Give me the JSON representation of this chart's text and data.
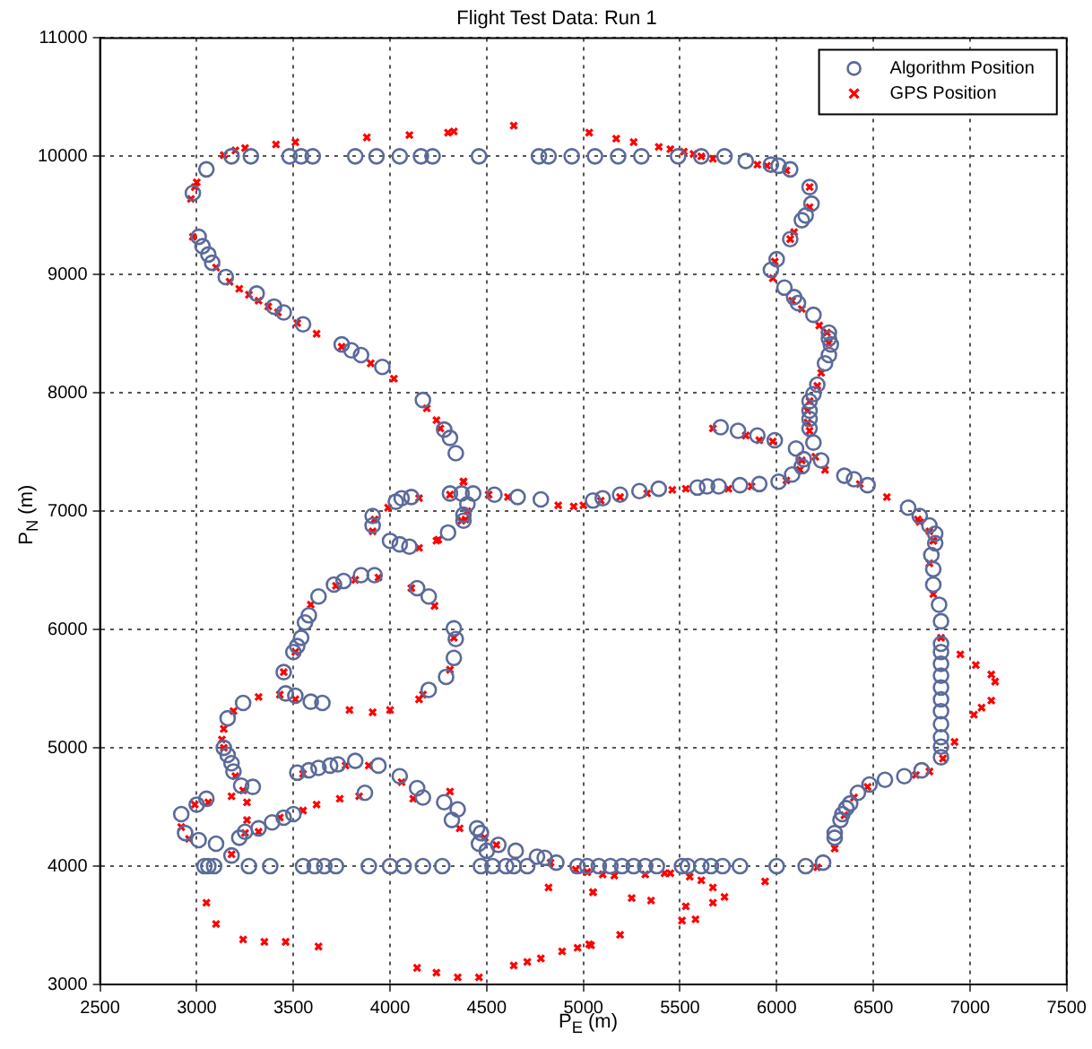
{
  "chart_data": {
    "type": "scatter",
    "title": "Flight Test Data: Run 1",
    "xlabel": "P$_{E}$ (m)",
    "ylabel": "P$_{N}$ (m)",
    "xlim": [
      2500,
      7500
    ],
    "xticks": [
      2500,
      3000,
      3500,
      4000,
      4500,
      5000,
      5500,
      6000,
      6500,
      7000,
      7500
    ],
    "ylim": [
      3000,
      11000
    ],
    "yticks": [
      3000,
      4000,
      5000,
      6000,
      7000,
      8000,
      9000,
      10000,
      11000
    ],
    "grid": true,
    "legend": "top right",
    "series": [
      {
        "name": "Algorithm Position",
        "color": "#5a6a9a",
        "marker": "circle",
        "x": [
          3180,
          3280,
          3480,
          3540,
          3600,
          3820,
          3930,
          4050,
          4160,
          4220,
          4460,
          4770,
          4820,
          4940,
          5060,
          5180,
          5300,
          5490,
          5610,
          5730,
          5840,
          5970,
          6010,
          6070,
          6170,
          6180,
          6150,
          6130,
          6070,
          6000,
          5970,
          6040,
          6090,
          6110,
          6190,
          6270,
          6270,
          6280,
          6270,
          6250,
          6210,
          6190,
          6170,
          6170,
          6170,
          6170,
          6190,
          6230,
          6140,
          6130,
          6080,
          6010,
          5910,
          5810,
          5700,
          5640,
          5590,
          5390,
          5290,
          5190,
          5100,
          5050,
          5710,
          5800,
          5900,
          5990,
          6100,
          6350,
          6400,
          6470,
          6680,
          6740,
          6790,
          6820,
          6820,
          6800,
          6810,
          6810,
          6840,
          6850,
          6850,
          6850,
          6850,
          6850,
          6850,
          6850,
          6850,
          6850,
          6850,
          6850,
          6850,
          6750,
          6660,
          6560,
          6480,
          6420,
          6380,
          6360,
          6340,
          6330,
          6300,
          6300,
          6240,
          6150,
          6000,
          5810,
          5720,
          5660,
          5610,
          5540,
          5510,
          5380,
          5320,
          5260,
          5200,
          5140,
          5080,
          5020,
          4970,
          4860,
          4800,
          4760,
          4650,
          4560,
          4500,
          4460,
          4470,
          4450,
          4320,
          4350,
          4280,
          4170,
          4140,
          4050,
          3940,
          3870,
          3820,
          3730,
          3690,
          3630,
          3580,
          3520,
          3500,
          3450,
          3390,
          3320,
          3250,
          3220,
          3180,
          3100,
          3010,
          2940,
          2920,
          3000,
          3050,
          3290,
          3230,
          3190,
          3180,
          3160,
          3140,
          3160,
          3240,
          3450,
          3460,
          3510,
          3590,
          3650,
          3500,
          3520,
          3540,
          3560,
          3580,
          3630,
          3710,
          3760,
          3850,
          3920,
          4140,
          4200,
          4330,
          4340,
          4330,
          4290,
          4200,
          4300,
          4000,
          4050,
          4100,
          3910,
          3910,
          4030,
          4060,
          4110,
          4310,
          4370,
          4430,
          4400,
          4380,
          4380,
          4540,
          4660,
          4780,
          4340,
          4310,
          4280,
          4170,
          3960,
          3850,
          3800,
          3750,
          3550,
          3450,
          3400,
          3310,
          3150,
          3080,
          3060,
          3030,
          3010,
          2980,
          3050,
          3040,
          3060,
          3090,
          3270,
          3380,
          3550,
          3610,
          3660,
          3720,
          3890,
          4000,
          4070,
          4170,
          4270,
          4470,
          4530,
          4600,
          4640,
          4710
        ],
        "values": [
          10000,
          10000,
          10000,
          10000,
          10000,
          10000,
          10000,
          10000,
          10000,
          10000,
          10000,
          10000,
          10000,
          10000,
          10000,
          10000,
          10000,
          10000,
          10000,
          10000,
          9960,
          9930,
          9920,
          9890,
          9740,
          9600,
          9500,
          9460,
          9300,
          9130,
          9040,
          8890,
          8810,
          8760,
          8660,
          8510,
          8460,
          8410,
          8320,
          8250,
          8070,
          7990,
          7930,
          7850,
          7780,
          7700,
          7580,
          7430,
          7440,
          7380,
          7310,
          7250,
          7230,
          7220,
          7210,
          7210,
          7200,
          7190,
          7170,
          7140,
          7110,
          7090,
          7710,
          7680,
          7640,
          7600,
          7530,
          7300,
          7270,
          7220,
          7030,
          6960,
          6880,
          6810,
          6730,
          6630,
          6510,
          6380,
          6210,
          6070,
          5880,
          5810,
          5710,
          5610,
          5510,
          5410,
          5310,
          5200,
          5090,
          5010,
          4920,
          4810,
          4760,
          4730,
          4690,
          4620,
          4530,
          4490,
          4440,
          4390,
          4280,
          4240,
          4030,
          4000,
          4000,
          4000,
          4000,
          4000,
          4000,
          4000,
          4000,
          4000,
          4000,
          4000,
          4000,
          4000,
          4000,
          4000,
          4000,
          4030,
          4070,
          4080,
          4130,
          4180,
          4130,
          4190,
          4280,
          4320,
          4390,
          4480,
          4540,
          4580,
          4660,
          4760,
          4850,
          4620,
          4890,
          4860,
          4850,
          4830,
          4810,
          4790,
          4440,
          4410,
          4370,
          4320,
          4290,
          4240,
          4090,
          4190,
          4220,
          4280,
          4440,
          4520,
          4570,
          4670,
          4680,
          4800,
          4870,
          4940,
          5000,
          5250,
          5380,
          5640,
          5460,
          5440,
          5390,
          5380,
          5810,
          5860,
          5930,
          6060,
          6120,
          6280,
          6380,
          6410,
          6460,
          6460,
          6350,
          6280,
          6010,
          5920,
          5760,
          5600,
          5490,
          6820,
          6750,
          6720,
          6700,
          6960,
          6880,
          7080,
          7110,
          7120,
          7150,
          7150,
          7150,
          7060,
          6970,
          6920,
          7140,
          7120,
          7100,
          7490,
          7620,
          7690,
          7940,
          8220,
          8320,
          8360,
          8410,
          8580,
          8680,
          8730,
          8840,
          8980,
          9100,
          9170,
          9240,
          9320,
          9690,
          9890,
          4000,
          4000,
          4000,
          4000,
          4000,
          4000,
          4000,
          4000,
          4000,
          4000,
          4000,
          4000,
          4000,
          4000,
          4000,
          4000,
          4000,
          4000,
          4000
        ]
      },
      {
        "name": "GPS Position",
        "color": "#ff0000",
        "marker": "cross",
        "x": [
          3140,
          3200,
          3250,
          3410,
          3510,
          3880,
          4100,
          4300,
          4330,
          4640,
          5030,
          5170,
          5260,
          5390,
          5450,
          5520,
          5570,
          5610,
          5670,
          5900,
          5950,
          6050,
          6170,
          6170,
          6090,
          6070,
          5990,
          5980,
          6080,
          6130,
          6220,
          6260,
          6270,
          6230,
          6210,
          6170,
          6160,
          6160,
          6170,
          6200,
          6250,
          6130,
          6120,
          6050,
          5670,
          5840,
          5910,
          5980,
          6430,
          6570,
          6740,
          6810,
          5750,
          5870,
          5530,
          5460,
          5330,
          5190,
          5090,
          5000,
          4950,
          4870,
          4610,
          4510,
          4310,
          4150,
          4250,
          4380,
          4400,
          4390,
          4370,
          3920,
          3990,
          4150,
          4240,
          3910,
          3720,
          3820,
          3940,
          4110,
          4230,
          3590,
          3510,
          3450,
          3320,
          3430,
          3510,
          3790,
          3910,
          4000,
          4150,
          4170,
          4330,
          4310,
          3190,
          3140,
          3130,
          3140,
          3200,
          3240,
          3260,
          3180,
          3060,
          2990,
          2920,
          2960,
          3180,
          3260,
          3250,
          3320,
          3430,
          3550,
          3620,
          3740,
          3840,
          3890,
          3770,
          3550,
          4060,
          4120,
          4310,
          4360,
          4490,
          4550,
          4830,
          4960,
          5020,
          4820,
          5050,
          3050,
          3100,
          3240,
          3350,
          3460,
          3630,
          4140,
          4240,
          4350,
          4460,
          4640,
          4710,
          4780,
          4890,
          4970,
          5030,
          5020,
          5100,
          5160,
          5320,
          5420,
          5450,
          5550,
          5610,
          5670,
          5670,
          5730,
          5940,
          5580,
          5510,
          5530,
          5350,
          5250,
          5190,
          5040,
          5050,
          6210,
          6300,
          6350,
          6400,
          6470,
          6720,
          6790,
          6860,
          6920,
          7020,
          7060,
          7110,
          7130,
          7110,
          7030,
          6950,
          6850,
          6810,
          6790,
          6810,
          6790,
          6730,
          3000,
          2990,
          2970,
          2980,
          3100,
          3170,
          3220,
          3270,
          3320,
          3370,
          3420,
          3520,
          3620,
          3750,
          3900,
          4020,
          4190,
          4240,
          4260,
          4380
        ],
        "values": [
          10010,
          10050,
          10070,
          10100,
          10120,
          10160,
          10180,
          10200,
          10210,
          10260,
          10200,
          10150,
          10120,
          10080,
          10060,
          10040,
          10020,
          10000,
          9980,
          9930,
          9920,
          9880,
          9740,
          9570,
          9360,
          9300,
          9110,
          8970,
          8780,
          8710,
          8570,
          8510,
          8420,
          8170,
          8060,
          7930,
          7850,
          7750,
          7680,
          7460,
          7350,
          7430,
          7350,
          7260,
          7700,
          7640,
          7600,
          7590,
          7230,
          7120,
          6910,
          6750,
          7190,
          7210,
          7190,
          7180,
          7150,
          7120,
          7090,
          7050,
          7040,
          7050,
          7120,
          7140,
          7140,
          7110,
          6760,
          7250,
          7000,
          6930,
          6920,
          6930,
          7030,
          6690,
          6750,
          6830,
          6370,
          6420,
          6440,
          6350,
          6200,
          6210,
          5810,
          5640,
          5430,
          5450,
          5410,
          5320,
          5300,
          5320,
          5410,
          5450,
          5930,
          5660,
          5310,
          5160,
          5070,
          5000,
          4760,
          4640,
          4540,
          4590,
          4540,
          4520,
          4330,
          4230,
          4100,
          4390,
          4280,
          4290,
          4410,
          4470,
          4520,
          4570,
          4590,
          4850,
          4850,
          4780,
          4710,
          4570,
          4630,
          4320,
          4240,
          4180,
          4030,
          3970,
          3950,
          3820,
          3780,
          3690,
          3510,
          3380,
          3360,
          3360,
          3320,
          3140,
          3100,
          3060,
          3060,
          3160,
          3190,
          3220,
          3280,
          3310,
          3340,
          3950,
          3930,
          3920,
          3930,
          3940,
          3940,
          3910,
          3880,
          3820,
          3690,
          3740,
          3870,
          3550,
          3540,
          3660,
          3710,
          3730,
          3420,
          3330,
          3780,
          3990,
          4150,
          4430,
          4580,
          4670,
          4770,
          4800,
          4910,
          5050,
          5280,
          5340,
          5400,
          5560,
          5620,
          5700,
          5790,
          5930,
          6300,
          6560,
          6750,
          6830,
          6930,
          9780,
          9740,
          9640,
          9320,
          9060,
          8940,
          8880,
          8830,
          8780,
          8730,
          8680,
          8590,
          8500,
          8390,
          8250,
          8120,
          7870,
          7770,
          7700,
          7250
        ]
      }
    ]
  }
}
